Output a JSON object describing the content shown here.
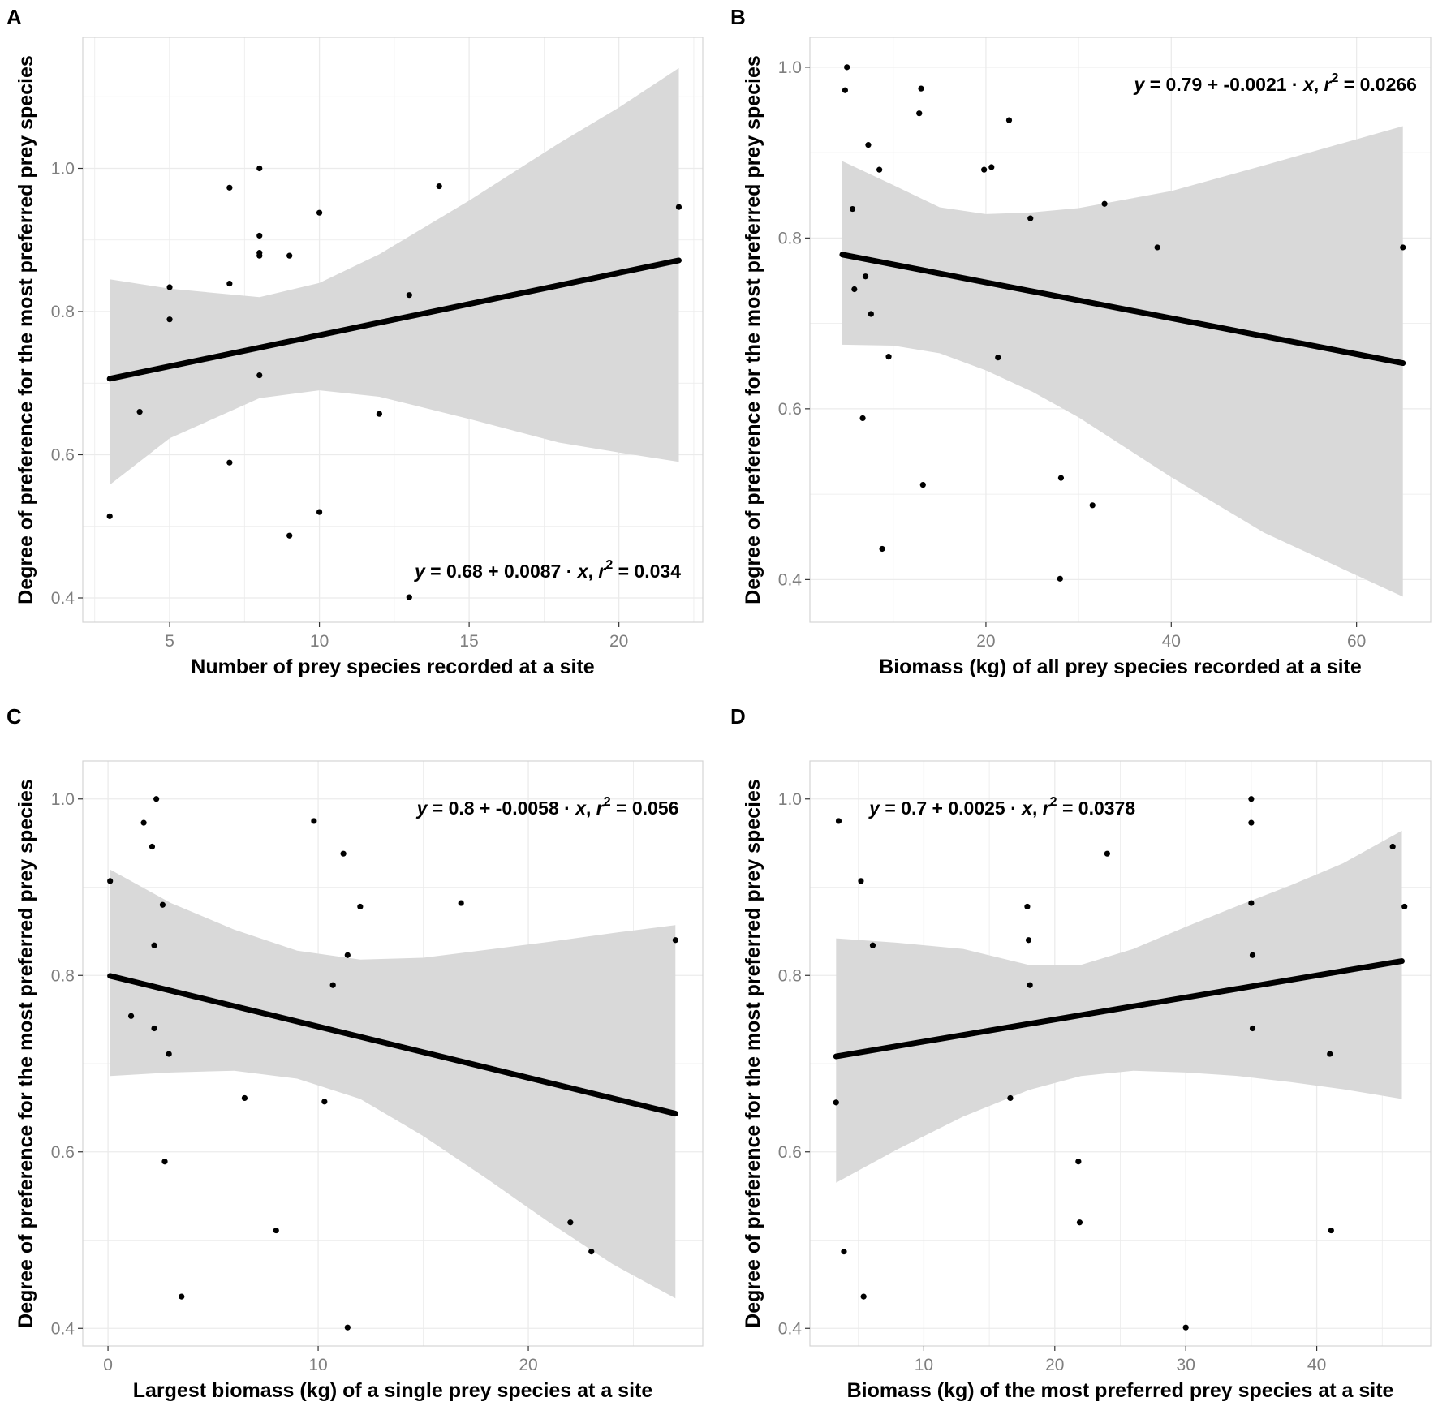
{
  "figure": {
    "tags": [
      "A",
      "B",
      "C",
      "D"
    ]
  },
  "colors": {
    "points": "#000000",
    "fit_line": "#000000",
    "ci_band": "#d9d9d9",
    "grid": "#ebebeb",
    "panel_border": "#d4d4d4",
    "tick_labels": "#7f7f7f"
  },
  "chart_data": [
    {
      "tag": "A",
      "type": "scatter",
      "xlabel": "Number of prey species recorded at a site",
      "ylabel": "Degree of preference for the most preferred prey species",
      "xlim": [
        2.1,
        22.8
      ],
      "ylim": [
        0.366,
        1.183
      ],
      "x_ticks": [
        5,
        10,
        15,
        20
      ],
      "y_ticks": [
        0.4,
        0.6,
        0.8,
        1.0
      ],
      "y_tick_labels": [
        "0.4",
        "0.6",
        "0.8",
        "1.0"
      ],
      "grid": true,
      "equation": {
        "y_eq": "y",
        "eq_mid": " = 0.68 + 0.0087 · ",
        "x_var": "x",
        "comma": ",",
        "r_sym": "r",
        "r_pow": "2",
        "r_val": " = 0.034"
      },
      "annotation_position": "bottom-right",
      "fit": {
        "intercept": 0.68,
        "slope": 0.0087
      },
      "ci_band": {
        "x": [
          3,
          5,
          8,
          10,
          12,
          15,
          18,
          20,
          22
        ],
        "lower": [
          0.558,
          0.623,
          0.679,
          0.69,
          0.681,
          0.65,
          0.617,
          0.603,
          0.59
        ],
        "upper": [
          0.845,
          0.832,
          0.82,
          0.84,
          0.88,
          0.955,
          1.035,
          1.085,
          1.14
        ]
      },
      "x": [
        3,
        4,
        5,
        5,
        7,
        7,
        7,
        8,
        8,
        8,
        8,
        8,
        9,
        9,
        10,
        10,
        12,
        13,
        13,
        14,
        22
      ],
      "y": [
        0.514,
        0.66,
        0.834,
        0.789,
        0.973,
        0.839,
        0.589,
        1.0,
        0.906,
        0.882,
        0.878,
        0.711,
        0.878,
        0.487,
        0.938,
        0.52,
        0.657,
        0.823,
        0.401,
        0.975,
        0.946
      ]
    },
    {
      "tag": "B",
      "type": "scatter",
      "xlabel": "Biomass (kg) of all prey species recorded at a site",
      "ylabel": "Degree of preference for the most preferred prey species",
      "xlim": [
        1.0,
        68.0
      ],
      "ylim": [
        0.35,
        1.035
      ],
      "x_ticks": [
        20,
        40,
        60
      ],
      "y_ticks": [
        0.4,
        0.6,
        0.8,
        1.0
      ],
      "y_tick_labels": [
        "0.4",
        "0.6",
        "0.8",
        "1.0"
      ],
      "grid": true,
      "equation": {
        "y_eq": "y",
        "eq_mid": " = 0.79 + -0.0021 · ",
        "x_var": "x",
        "comma": ",",
        "r_sym": "r",
        "r_pow": "2",
        "r_val": " = 0.0266"
      },
      "annotation_position": "top-right",
      "fit": {
        "intercept": 0.79,
        "slope": -0.0021
      },
      "ci_band": {
        "x": [
          4.5,
          10,
          15,
          20,
          25,
          30,
          40,
          50,
          65
        ],
        "lower": [
          0.675,
          0.674,
          0.665,
          0.645,
          0.62,
          0.59,
          0.52,
          0.455,
          0.38
        ],
        "upper": [
          0.89,
          0.862,
          0.836,
          0.828,
          0.83,
          0.835,
          0.855,
          0.885,
          0.931
        ]
      },
      "x": [
        4.8,
        5.0,
        5.6,
        5.8,
        6.7,
        7.0,
        7.3,
        7.6,
        8.5,
        8.8,
        9.5,
        12.8,
        13.0,
        13.2,
        19.8,
        20.6,
        21.3,
        22.5,
        24.8,
        28.0,
        28.1,
        31.5,
        32.8,
        38.5,
        65.0
      ],
      "y": [
        0.973,
        1.0,
        0.834,
        0.74,
        0.589,
        0.755,
        0.909,
        0.711,
        0.88,
        0.436,
        0.661,
        0.946,
        0.975,
        0.511,
        0.88,
        0.883,
        0.66,
        0.938,
        0.823,
        0.401,
        0.519,
        0.487,
        0.84,
        0.789,
        0.789
      ]
    },
    {
      "tag": "C",
      "type": "scatter",
      "xlabel": "Largest biomass (kg) of a single prey species at a site",
      "ylabel": "Degree of preference for the most preferred prey species",
      "xlim": [
        -1.2,
        28.3
      ],
      "ylim": [
        0.38,
        1.043
      ],
      "x_ticks": [
        0,
        10,
        20
      ],
      "y_ticks": [
        0.4,
        0.6,
        0.8,
        1.0
      ],
      "y_tick_labels": [
        "0.4",
        "0.6",
        "0.8",
        "1.0"
      ],
      "grid": true,
      "equation": {
        "y_eq": "y",
        "eq_mid": " = 0.8 + -0.0058 · ",
        "x_var": "x",
        "comma": ",",
        "r_sym": "r",
        "r_pow": "2",
        "r_val": " = 0.056"
      },
      "annotation_position": "top-right",
      "fit": {
        "intercept": 0.8,
        "slope": -0.0058
      },
      "ci_band": {
        "x": [
          0.1,
          3,
          6,
          9,
          12,
          15,
          18,
          21,
          24,
          27
        ],
        "lower": [
          0.686,
          0.69,
          0.692,
          0.683,
          0.66,
          0.618,
          0.57,
          0.52,
          0.473,
          0.434
        ],
        "upper": [
          0.92,
          0.882,
          0.852,
          0.828,
          0.818,
          0.82,
          0.829,
          0.838,
          0.848,
          0.857
        ]
      },
      "x": [
        0.1,
        1.1,
        1.7,
        2.1,
        2.2,
        2.2,
        2.3,
        2.6,
        2.7,
        2.9,
        3.5,
        6.5,
        8.0,
        9.8,
        10.3,
        10.7,
        11.2,
        11.4,
        11.4,
        12.0,
        16.8,
        22.0,
        23.0,
        27.0
      ],
      "y": [
        0.907,
        0.754,
        0.973,
        0.946,
        0.834,
        0.74,
        1.0,
        0.88,
        0.589,
        0.711,
        0.436,
        0.661,
        0.511,
        0.975,
        0.657,
        0.789,
        0.938,
        0.823,
        0.401,
        0.878,
        0.882,
        0.52,
        0.487,
        0.84
      ]
    },
    {
      "tag": "D",
      "type": "scatter",
      "xlabel": "Biomass (kg) of the most preferred prey species at a site",
      "ylabel": "Degree of preference for the most preferred prey species",
      "xlim": [
        1.3,
        48.7
      ],
      "ylim": [
        0.38,
        1.043
      ],
      "x_ticks": [
        10,
        20,
        30,
        40
      ],
      "y_ticks": [
        0.4,
        0.6,
        0.8,
        1.0
      ],
      "y_tick_labels": [
        "0.4",
        "0.6",
        "0.8",
        "1.0"
      ],
      "grid": true,
      "equation": {
        "y_eq": "y",
        "eq_mid": " = 0.7 + 0.0025 · ",
        "x_var": "x",
        "comma": ",",
        "r_sym": "r",
        "r_pow": "2",
        "r_val": " = 0.0378"
      },
      "annotation_position": "top-left",
      "fit": {
        "intercept": 0.7,
        "slope": 0.0025
      },
      "ci_band": {
        "x": [
          3.3,
          8,
          13,
          18,
          22,
          26,
          30,
          34,
          38,
          42,
          46.5
        ],
        "lower": [
          0.565,
          0.603,
          0.64,
          0.67,
          0.686,
          0.692,
          0.69,
          0.686,
          0.679,
          0.671,
          0.66
        ],
        "upper": [
          0.842,
          0.837,
          0.83,
          0.812,
          0.812,
          0.83,
          0.855,
          0.879,
          0.902,
          0.927,
          0.964
        ]
      },
      "x": [
        3.3,
        3.5,
        3.9,
        5.2,
        5.4,
        6.1,
        16.6,
        17.9,
        18.0,
        18.1,
        21.8,
        21.9,
        24.0,
        30.0,
        35.0,
        35.0,
        35.0,
        35.1,
        35.1,
        41.0,
        41.1,
        45.8,
        46.7
      ],
      "y": [
        0.656,
        0.975,
        0.487,
        0.907,
        0.436,
        0.834,
        0.661,
        0.878,
        0.84,
        0.789,
        0.589,
        0.52,
        0.938,
        0.401,
        1.0,
        0.973,
        0.882,
        0.823,
        0.74,
        0.711,
        0.511,
        0.946,
        0.878
      ]
    }
  ]
}
